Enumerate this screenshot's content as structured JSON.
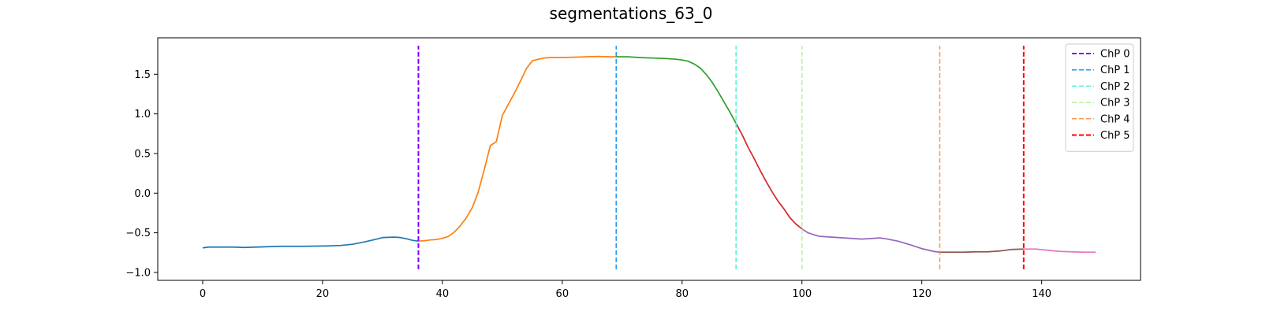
{
  "chart_data": {
    "type": "line",
    "title": "segmentations_63_0",
    "xlabel": "",
    "ylabel": "",
    "xlim": [
      -7.5,
      156.5
    ],
    "ylim": [
      -1.1,
      1.96
    ],
    "x_ticks": [
      0,
      20,
      40,
      60,
      80,
      100,
      120,
      140
    ],
    "y_ticks": [
      -1.0,
      -0.5,
      0.0,
      0.5,
      1.0,
      1.5
    ],
    "x_tick_labels": [
      "0",
      "20",
      "40",
      "60",
      "80",
      "100",
      "120",
      "140"
    ],
    "y_tick_labels": [
      "−1.0",
      "−0.5",
      "0.0",
      "0.5",
      "1.0",
      "1.5"
    ],
    "grid": false,
    "legend_position": "top-right",
    "segments": [
      {
        "color": "#1f77b4",
        "points": [
          [
            0,
            -0.69
          ],
          [
            1,
            -0.68
          ],
          [
            3,
            -0.68
          ],
          [
            5,
            -0.68
          ],
          [
            7,
            -0.685
          ],
          [
            9,
            -0.68
          ],
          [
            11,
            -0.675
          ],
          [
            13,
            -0.67
          ],
          [
            15,
            -0.67
          ],
          [
            17,
            -0.67
          ],
          [
            19,
            -0.668
          ],
          [
            21,
            -0.665
          ],
          [
            23,
            -0.66
          ],
          [
            25,
            -0.645
          ],
          [
            27,
            -0.615
          ],
          [
            29,
            -0.58
          ],
          [
            30,
            -0.56
          ],
          [
            32,
            -0.555
          ],
          [
            33,
            -0.56
          ],
          [
            34,
            -0.575
          ],
          [
            35,
            -0.595
          ],
          [
            36,
            -0.605
          ]
        ]
      },
      {
        "color": "#ff7f0e",
        "points": [
          [
            36,
            -0.605
          ],
          [
            37,
            -0.6
          ],
          [
            38,
            -0.59
          ],
          [
            39,
            -0.585
          ],
          [
            40,
            -0.57
          ],
          [
            41,
            -0.545
          ],
          [
            42,
            -0.49
          ],
          [
            43,
            -0.41
          ],
          [
            44,
            -0.31
          ],
          [
            45,
            -0.18
          ],
          [
            46,
            0.02
          ],
          [
            47,
            0.3
          ],
          [
            48,
            0.6
          ],
          [
            49,
            0.65
          ],
          [
            50,
            0.98
          ],
          [
            51,
            1.12
          ],
          [
            52,
            1.26
          ],
          [
            53,
            1.41
          ],
          [
            54,
            1.57
          ],
          [
            55,
            1.67
          ],
          [
            56,
            1.69
          ],
          [
            57,
            1.705
          ],
          [
            58,
            1.71
          ],
          [
            60,
            1.71
          ],
          [
            62,
            1.715
          ],
          [
            64,
            1.72
          ],
          [
            66,
            1.725
          ],
          [
            68,
            1.72
          ],
          [
            69,
            1.72
          ]
        ]
      },
      {
        "color": "#2ca02c",
        "points": [
          [
            69,
            1.72
          ],
          [
            71,
            1.72
          ],
          [
            73,
            1.71
          ],
          [
            75,
            1.705
          ],
          [
            77,
            1.7
          ],
          [
            79,
            1.69
          ],
          [
            80,
            1.68
          ],
          [
            81,
            1.665
          ],
          [
            82,
            1.63
          ],
          [
            83,
            1.58
          ],
          [
            84,
            1.5
          ],
          [
            85,
            1.4
          ],
          [
            86,
            1.28
          ],
          [
            87,
            1.15
          ],
          [
            88,
            1.02
          ],
          [
            89,
            0.88
          ]
        ]
      },
      {
        "color": "#d62728",
        "points": [
          [
            89,
            0.88
          ],
          [
            90,
            0.74
          ],
          [
            91,
            0.58
          ],
          [
            92,
            0.44
          ],
          [
            93,
            0.29
          ],
          [
            94,
            0.15
          ],
          [
            95,
            0.02
          ],
          [
            96,
            -0.1
          ],
          [
            97,
            -0.2
          ],
          [
            98,
            -0.31
          ],
          [
            99,
            -0.39
          ],
          [
            100,
            -0.45
          ]
        ]
      },
      {
        "color": "#9467bd",
        "points": [
          [
            100,
            -0.45
          ],
          [
            101,
            -0.5
          ],
          [
            102,
            -0.525
          ],
          [
            103,
            -0.545
          ],
          [
            105,
            -0.555
          ],
          [
            107,
            -0.565
          ],
          [
            109,
            -0.575
          ],
          [
            110,
            -0.58
          ],
          [
            111,
            -0.575
          ],
          [
            112,
            -0.57
          ],
          [
            113,
            -0.565
          ],
          [
            114,
            -0.575
          ],
          [
            116,
            -0.605
          ],
          [
            118,
            -0.65
          ],
          [
            120,
            -0.7
          ],
          [
            122,
            -0.735
          ],
          [
            123,
            -0.745
          ]
        ]
      },
      {
        "color": "#8c564b",
        "points": [
          [
            123,
            -0.745
          ],
          [
            125,
            -0.745
          ],
          [
            127,
            -0.745
          ],
          [
            129,
            -0.74
          ],
          [
            131,
            -0.74
          ],
          [
            133,
            -0.73
          ],
          [
            135,
            -0.71
          ],
          [
            137,
            -0.705
          ]
        ]
      },
      {
        "color": "#e377c2",
        "points": [
          [
            137,
            -0.705
          ],
          [
            139,
            -0.705
          ],
          [
            141,
            -0.72
          ],
          [
            143,
            -0.735
          ],
          [
            145,
            -0.74
          ],
          [
            147,
            -0.745
          ],
          [
            149,
            -0.745
          ]
        ]
      }
    ],
    "change_points": [
      {
        "label": "ChP 0",
        "x": 36,
        "color": "#7f00ff",
        "thick": true
      },
      {
        "label": "ChP 1",
        "x": 69,
        "color": "#1996f3",
        "thick": false
      },
      {
        "label": "ChP 2",
        "x": 89,
        "color": "#4df3ce",
        "thick": false
      },
      {
        "label": "ChP 3",
        "x": 100,
        "color": "#b2f396",
        "thick": false
      },
      {
        "label": "ChP 4",
        "x": 123,
        "color": "#ff964f",
        "thick": false
      },
      {
        "label": "ChP 5",
        "x": 137,
        "color": "#ff0000",
        "thick": true
      }
    ],
    "vline_range": [
      -0.96,
      1.86
    ]
  }
}
